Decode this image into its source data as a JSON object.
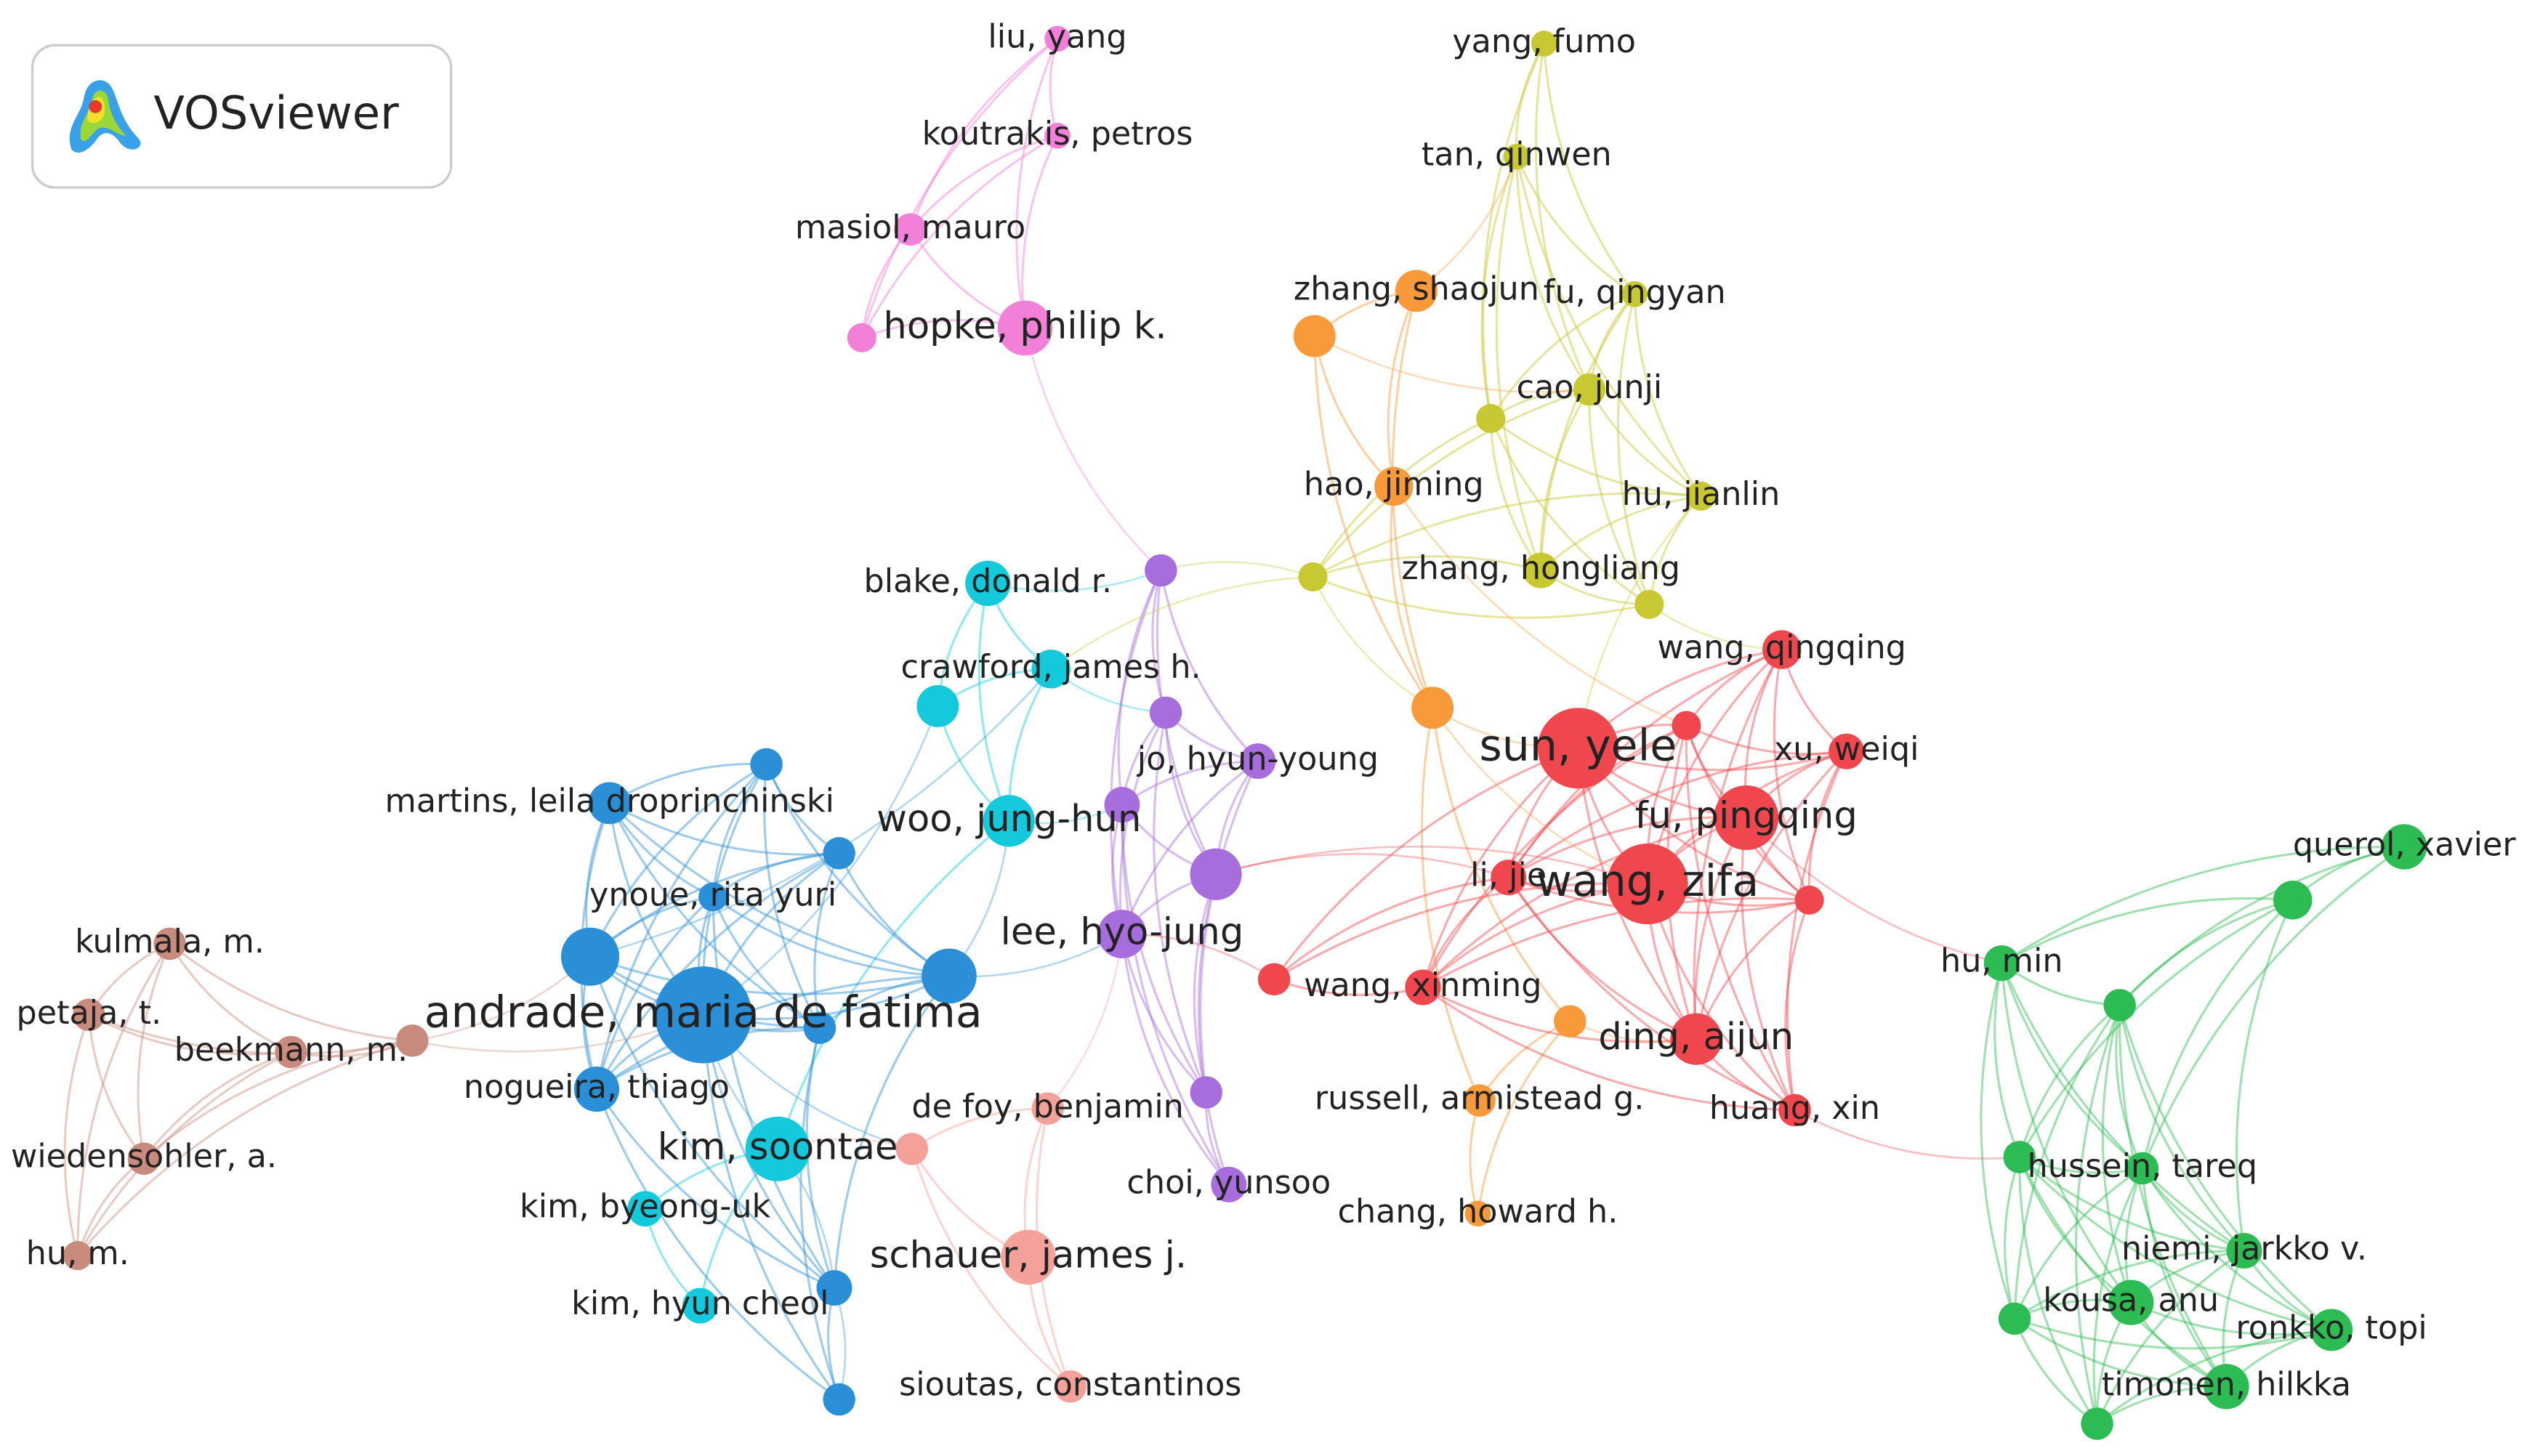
{
  "logo": {
    "text": "VOSviewer"
  },
  "clusters": [
    {
      "color": "#f27fd8",
      "nodes": [
        {
          "label": "liu, yang"
        },
        {
          "label": "koutrakis, petros"
        },
        {
          "label": "masiol, mauro"
        },
        {
          "label": "hopke, philip k."
        }
      ]
    },
    {
      "color": "#c8c832",
      "nodes": [
        {
          "label": "yang, fumo"
        },
        {
          "label": "tan, qinwen"
        },
        {
          "label": "fu, qingyan"
        },
        {
          "label": "cao, junji"
        },
        {
          "label": "hu, jianlin"
        },
        {
          "label": "zhang, hongliang"
        }
      ]
    },
    {
      "color": "#f89a3a",
      "nodes": [
        {
          "label": "zhang, shaojun"
        },
        {
          "label": "hao, jiming"
        },
        {
          "label": "russell, armistead g."
        },
        {
          "label": "chang, howard h."
        }
      ]
    },
    {
      "color": "#f0474f",
      "nodes": [
        {
          "label": "wang, qingqing"
        },
        {
          "label": "sun, yele"
        },
        {
          "label": "xu, weiqi"
        },
        {
          "label": "fu, pingqing"
        },
        {
          "label": "li, jie"
        },
        {
          "label": "wang, zifa"
        },
        {
          "label": "wang, xinming"
        },
        {
          "label": "ding, aijun"
        },
        {
          "label": "huang, xin"
        }
      ]
    },
    {
      "color": "#2dbb53",
      "nodes": [
        {
          "label": "querol, xavier"
        },
        {
          "label": "hu, min"
        },
        {
          "label": "hussein, tareq"
        },
        {
          "label": "niemi, jarkko v."
        },
        {
          "label": "kousa, anu"
        },
        {
          "label": "ronkko, topi"
        },
        {
          "label": "timonen, hilkka"
        }
      ]
    },
    {
      "color": "#15c9dd",
      "nodes": [
        {
          "label": "blake, donald r."
        },
        {
          "label": "crawford, james h."
        },
        {
          "label": "woo, jung-hun"
        },
        {
          "label": "kim, soontae"
        },
        {
          "label": "kim, byeong-uk"
        },
        {
          "label": "kim, hyun cheol"
        }
      ]
    },
    {
      "color": "#2b8fd8",
      "nodes": [
        {
          "label": "martins, leila droprinchinski"
        },
        {
          "label": "ynoue, rita yuri"
        },
        {
          "label": "andrade, maria de fatima"
        },
        {
          "label": "nogueira, thiago"
        }
      ]
    },
    {
      "color": "#a86ddc",
      "nodes": [
        {
          "label": "jo, hyun-young"
        },
        {
          "label": "lee, hyo-jung"
        },
        {
          "label": "choi, yunsoo"
        }
      ]
    },
    {
      "color": "#f4a19a",
      "nodes": [
        {
          "label": "de foy, benjamin"
        },
        {
          "label": "schauer, james j."
        },
        {
          "label": "sioutas, constantinos"
        }
      ]
    },
    {
      "color": "#c98b7e",
      "nodes": [
        {
          "label": "kulmala, m."
        },
        {
          "label": "petaja, t."
        },
        {
          "label": "beekmann, m."
        },
        {
          "label": "wiedensohler, a."
        },
        {
          "label": "hu, m."
        }
      ]
    }
  ]
}
